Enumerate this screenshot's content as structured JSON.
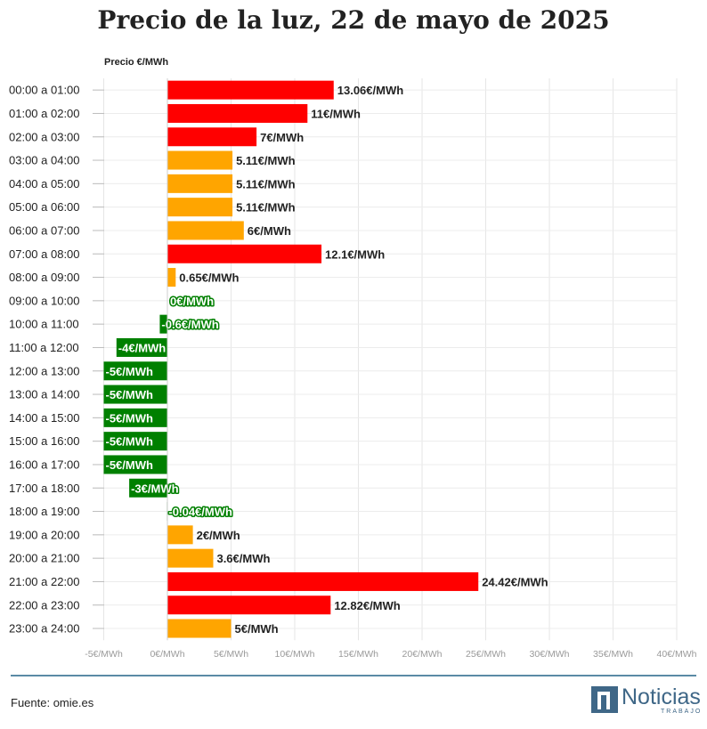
{
  "chart_data": {
    "type": "bar",
    "orientation": "horizontal",
    "title": "Precio de la luz, 22 de mayo de 2025",
    "value_header": "Precio €/MWh",
    "categories": [
      "00:00 a 01:00",
      "01:00 a 02:00",
      "02:00 a 03:00",
      "03:00 a 04:00",
      "04:00 a 05:00",
      "05:00 a 06:00",
      "06:00 a 07:00",
      "07:00 a 08:00",
      "08:00 a 09:00",
      "09:00 a 10:00",
      "10:00 a 11:00",
      "11:00 a 12:00",
      "12:00 a 13:00",
      "13:00 a 14:00",
      "14:00 a 15:00",
      "15:00 a 16:00",
      "16:00 a 17:00",
      "17:00 a 18:00",
      "18:00 a 19:00",
      "19:00 a 20:00",
      "20:00 a 21:00",
      "21:00 a 22:00",
      "22:00 a 23:00",
      "23:00 a 24:00"
    ],
    "values": [
      13.06,
      11,
      7,
      5.11,
      5.11,
      5.11,
      6,
      12.1,
      0.65,
      0,
      -0.6,
      -4,
      -5,
      -5,
      -5,
      -5,
      -5,
      -3,
      -0.04,
      2,
      3.6,
      24.42,
      12.82,
      5
    ],
    "labels": [
      "13.06€/MWh",
      "11€/MWh",
      "7€/MWh",
      "5.11€/MWh",
      "5.11€/MWh",
      "5.11€/MWh",
      "6€/MWh",
      "12.1€/MWh",
      "0.65€/MWh",
      "0€/MWh",
      "-0.6€/MWh",
      "-4€/MWh",
      "-5€/MWh",
      "-5€/MWh",
      "-5€/MWh",
      "-5€/MWh",
      "-5€/MWh",
      "-3€/MWh",
      "-0.04€/MWh",
      "2€/MWh",
      "3.6€/MWh",
      "24.42€/MWh",
      "12.82€/MWh",
      "5€/MWh"
    ],
    "x_ticks": [
      "-5€/MWh",
      "0€/MWh",
      "5€/MWh",
      "10€/MWh",
      "15€/MWh",
      "20€/MWh",
      "25€/MWh",
      "30€/MWh",
      "35€/MWh",
      "40€/MWh"
    ],
    "tick_values": [
      -5,
      0,
      5,
      10,
      15,
      20,
      25,
      30,
      35,
      40
    ],
    "xlim": [
      -5,
      40
    ],
    "colors": {
      "high": "#ff0000",
      "medium": "#ffa500",
      "negative": "#008000"
    }
  },
  "footer": {
    "source": "Fuente: omie.es",
    "logo_word": "Noticias",
    "logo_sub": "TRABAJO"
  }
}
